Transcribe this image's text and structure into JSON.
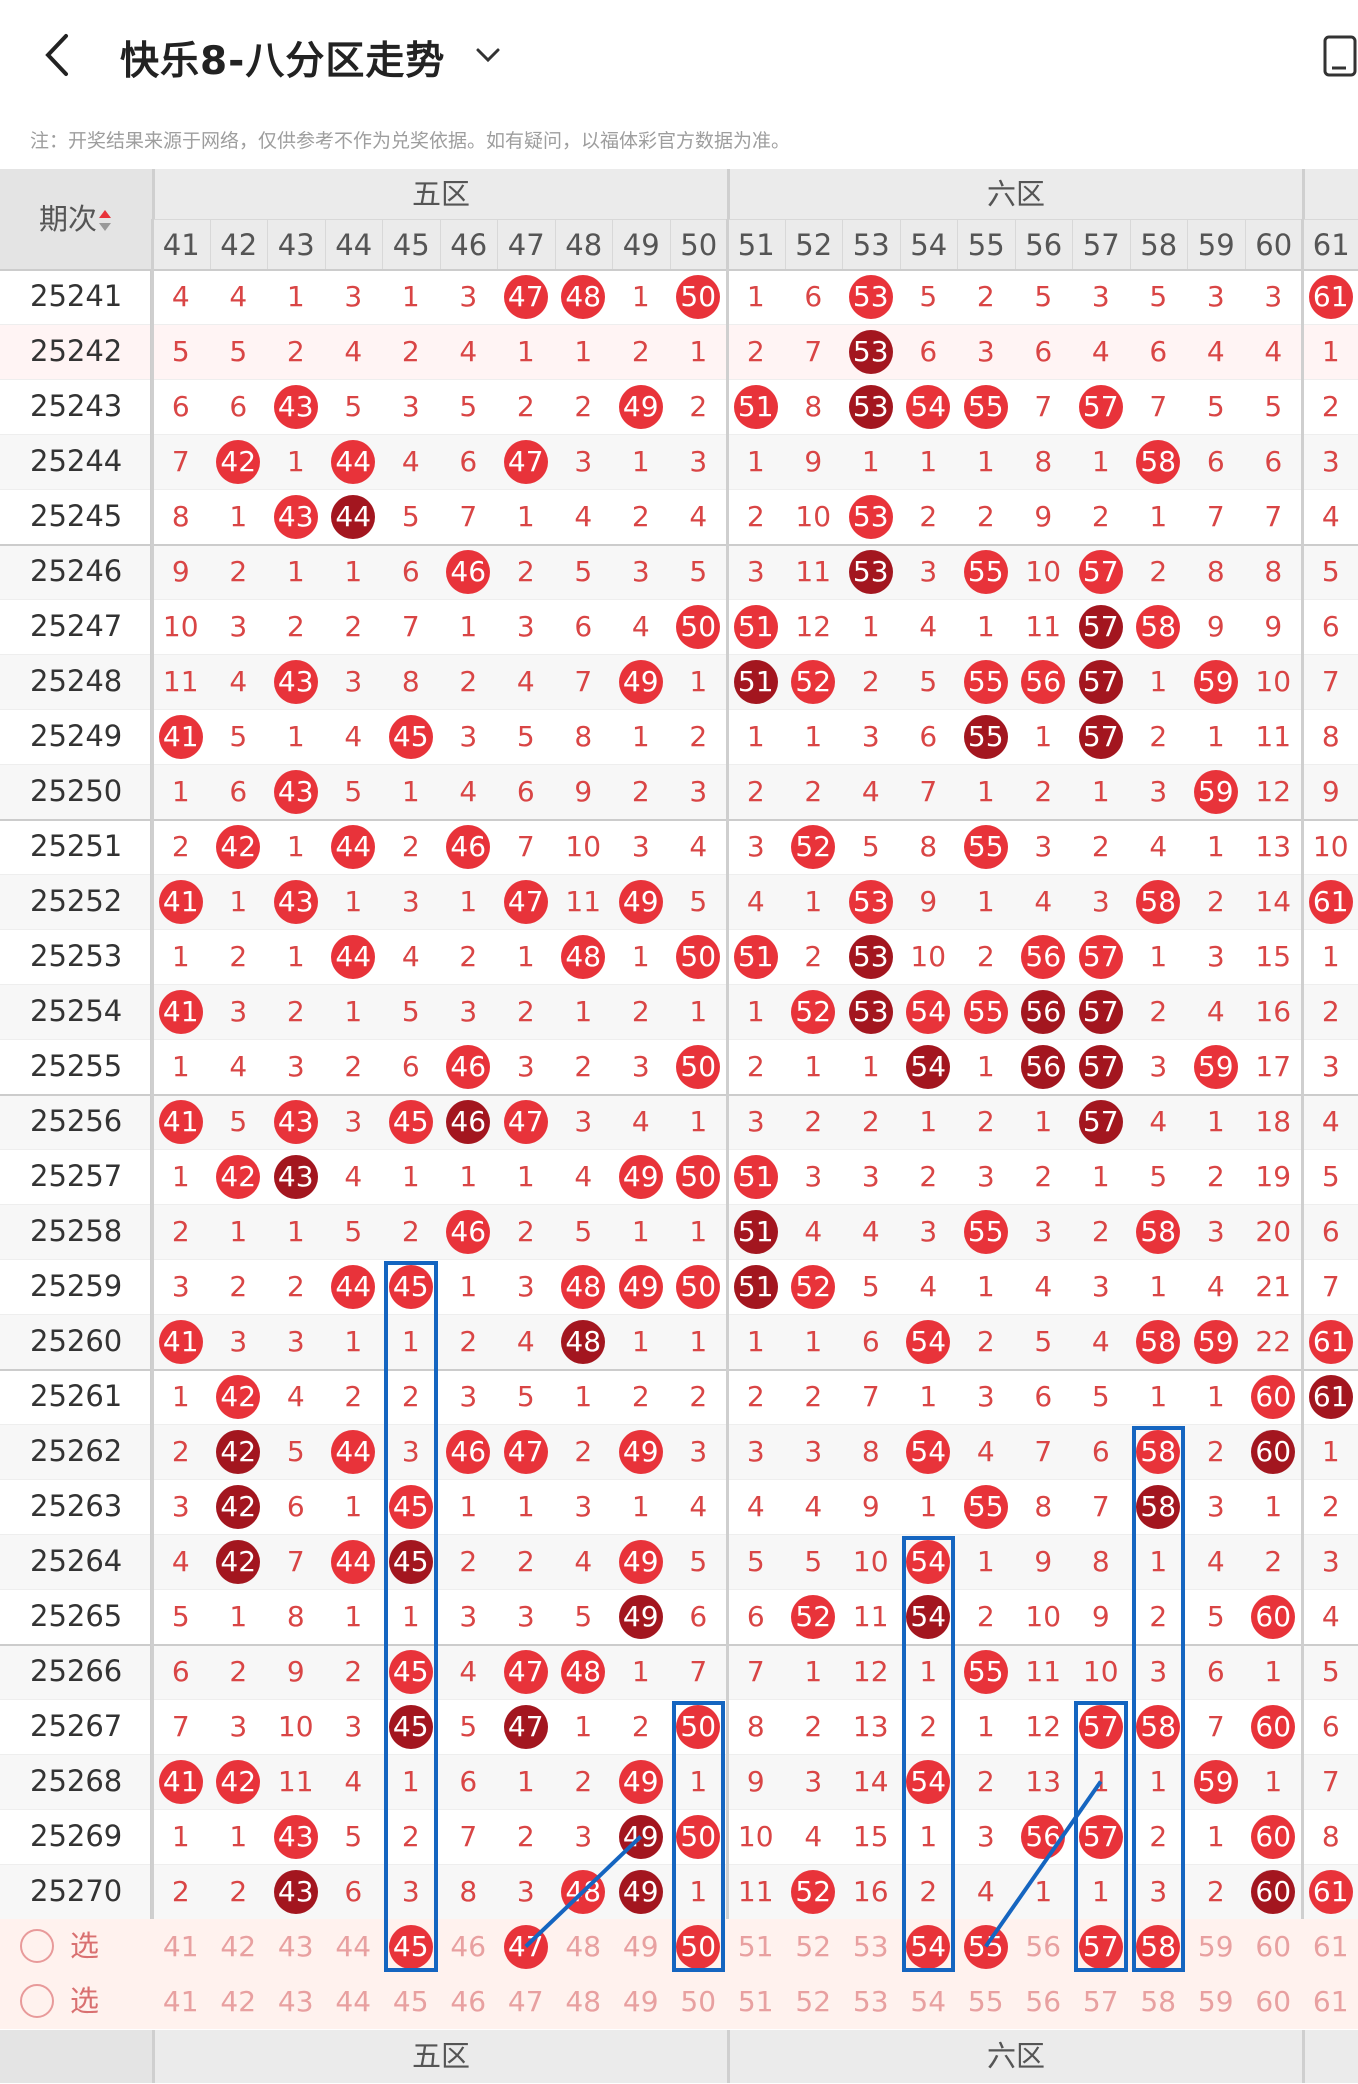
{
  "header": {
    "title": "快乐8-八分区走势",
    "back_icon": "chevron-left-icon",
    "dropdown_icon": "chevron-down-icon",
    "device_icon": "phone-icon"
  },
  "notice": "注：开奖结果来源于网络，仅供参考不作为兑奖依据。如有疑问，以福体彩官方数据为准。",
  "table": {
    "period_header": "期次",
    "zones": [
      {
        "label": "五区",
        "first": 41,
        "last": 50
      },
      {
        "label": "六区",
        "first": 51,
        "last": 60
      },
      {
        "label": "",
        "first": 61,
        "last": 61
      }
    ],
    "columns": [
      "41",
      "42",
      "43",
      "44",
      "45",
      "46",
      "47",
      "48",
      "49",
      "50",
      "51",
      "52",
      "53",
      "54",
      "55",
      "56",
      "57",
      "58",
      "59",
      "60",
      "61"
    ],
    "rows": [
      {
        "period": "25241",
        "cells": [
          "4",
          "4",
          "1",
          "3",
          "1",
          "3",
          "47",
          "48",
          "1",
          "50",
          "1",
          "6",
          "53",
          "5",
          "2",
          "5",
          "3",
          "5",
          "3",
          "3",
          "61"
        ]
      },
      {
        "period": "25242",
        "cells": [
          "5",
          "5",
          "2",
          "4",
          "2",
          "4",
          "1",
          "1",
          "2",
          "1",
          "2",
          "7",
          "53",
          "6",
          "3",
          "6",
          "4",
          "6",
          "4",
          "4",
          "1"
        ]
      },
      {
        "period": "25243",
        "cells": [
          "6",
          "6",
          "43",
          "5",
          "3",
          "5",
          "2",
          "2",
          "49",
          "2",
          "51",
          "8",
          "53",
          "54",
          "55",
          "7",
          "57",
          "7",
          "5",
          "5",
          "2"
        ]
      },
      {
        "period": "25244",
        "cells": [
          "7",
          "42",
          "1",
          "44",
          "4",
          "6",
          "47",
          "3",
          "1",
          "3",
          "1",
          "9",
          "1",
          "1",
          "1",
          "8",
          "1",
          "58",
          "6",
          "6",
          "3"
        ]
      },
      {
        "period": "25245",
        "cells": [
          "8",
          "1",
          "43",
          "44",
          "5",
          "7",
          "1",
          "4",
          "2",
          "4",
          "2",
          "10",
          "53",
          "2",
          "2",
          "9",
          "2",
          "1",
          "7",
          "7",
          "4"
        ]
      },
      {
        "period": "25246",
        "cells": [
          "9",
          "2",
          "1",
          "1",
          "6",
          "46",
          "2",
          "5",
          "3",
          "5",
          "3",
          "11",
          "53",
          "3",
          "55",
          "10",
          "57",
          "2",
          "8",
          "8",
          "5"
        ]
      },
      {
        "period": "25247",
        "cells": [
          "10",
          "3",
          "2",
          "2",
          "7",
          "1",
          "3",
          "6",
          "4",
          "50",
          "51",
          "12",
          "1",
          "4",
          "1",
          "11",
          "57",
          "58",
          "9",
          "9",
          "6"
        ]
      },
      {
        "period": "25248",
        "cells": [
          "11",
          "4",
          "43",
          "3",
          "8",
          "2",
          "4",
          "7",
          "49",
          "1",
          "51",
          "52",
          "2",
          "5",
          "55",
          "56",
          "57",
          "1",
          "59",
          "10",
          "7"
        ]
      },
      {
        "period": "25249",
        "cells": [
          "41",
          "5",
          "1",
          "4",
          "45",
          "3",
          "5",
          "8",
          "1",
          "2",
          "1",
          "1",
          "3",
          "6",
          "55",
          "1",
          "57",
          "2",
          "1",
          "11",
          "8"
        ]
      },
      {
        "period": "25250",
        "cells": [
          "1",
          "6",
          "43",
          "5",
          "1",
          "4",
          "6",
          "9",
          "2",
          "3",
          "2",
          "2",
          "4",
          "7",
          "1",
          "2",
          "1",
          "3",
          "59",
          "12",
          "9"
        ]
      },
      {
        "period": "25251",
        "cells": [
          "2",
          "42",
          "1",
          "44",
          "2",
          "46",
          "7",
          "10",
          "3",
          "4",
          "3",
          "52",
          "5",
          "8",
          "55",
          "3",
          "2",
          "4",
          "1",
          "13",
          "10"
        ]
      },
      {
        "period": "25252",
        "cells": [
          "41",
          "1",
          "43",
          "1",
          "3",
          "1",
          "47",
          "11",
          "49",
          "5",
          "4",
          "1",
          "53",
          "9",
          "1",
          "4",
          "3",
          "58",
          "2",
          "14",
          "61"
        ]
      },
      {
        "period": "25253",
        "cells": [
          "1",
          "2",
          "1",
          "44",
          "4",
          "2",
          "1",
          "48",
          "1",
          "50",
          "51",
          "2",
          "53",
          "10",
          "2",
          "56",
          "57",
          "1",
          "3",
          "15",
          "1"
        ]
      },
      {
        "period": "25254",
        "cells": [
          "41",
          "3",
          "2",
          "1",
          "5",
          "3",
          "2",
          "1",
          "2",
          "1",
          "1",
          "52",
          "53",
          "54",
          "55",
          "56",
          "57",
          "2",
          "4",
          "16",
          "2"
        ]
      },
      {
        "period": "25255",
        "cells": [
          "1",
          "4",
          "3",
          "2",
          "6",
          "46",
          "3",
          "2",
          "3",
          "50",
          "2",
          "1",
          "1",
          "54",
          "1",
          "56",
          "57",
          "3",
          "59",
          "17",
          "3"
        ]
      },
      {
        "period": "25256",
        "cells": [
          "41",
          "5",
          "43",
          "3",
          "45",
          "46",
          "47",
          "3",
          "4",
          "1",
          "3",
          "2",
          "2",
          "1",
          "2",
          "1",
          "57",
          "4",
          "1",
          "18",
          "4"
        ]
      },
      {
        "period": "25257",
        "cells": [
          "1",
          "42",
          "43",
          "4",
          "1",
          "1",
          "1",
          "4",
          "49",
          "50",
          "51",
          "3",
          "3",
          "2",
          "3",
          "2",
          "1",
          "5",
          "2",
          "19",
          "5"
        ]
      },
      {
        "period": "25258",
        "cells": [
          "2",
          "1",
          "1",
          "5",
          "2",
          "46",
          "2",
          "5",
          "1",
          "1",
          "51",
          "4",
          "4",
          "3",
          "55",
          "3",
          "2",
          "58",
          "3",
          "20",
          "6"
        ]
      },
      {
        "period": "25259",
        "cells": [
          "3",
          "2",
          "2",
          "44",
          "45",
          "1",
          "3",
          "48",
          "49",
          "50",
          "51",
          "52",
          "5",
          "4",
          "1",
          "4",
          "3",
          "1",
          "4",
          "21",
          "7"
        ]
      },
      {
        "period": "25260",
        "cells": [
          "41",
          "3",
          "3",
          "1",
          "1",
          "2",
          "4",
          "48",
          "1",
          "1",
          "1",
          "1",
          "6",
          "54",
          "2",
          "5",
          "4",
          "58",
          "59",
          "22",
          "61"
        ]
      },
      {
        "period": "25261",
        "cells": [
          "1",
          "42",
          "4",
          "2",
          "2",
          "3",
          "5",
          "1",
          "2",
          "2",
          "2",
          "2",
          "7",
          "1",
          "3",
          "6",
          "5",
          "1",
          "1",
          "60",
          "61"
        ]
      },
      {
        "period": "25262",
        "cells": [
          "2",
          "42",
          "5",
          "44",
          "3",
          "46",
          "47",
          "2",
          "49",
          "3",
          "3",
          "3",
          "8",
          "54",
          "4",
          "7",
          "6",
          "58",
          "2",
          "60",
          "1"
        ]
      },
      {
        "period": "25263",
        "cells": [
          "3",
          "42",
          "6",
          "1",
          "45",
          "1",
          "1",
          "3",
          "1",
          "4",
          "4",
          "4",
          "9",
          "1",
          "55",
          "8",
          "7",
          "58",
          "3",
          "1",
          "2"
        ]
      },
      {
        "period": "25264",
        "cells": [
          "4",
          "42",
          "7",
          "44",
          "45",
          "2",
          "2",
          "4",
          "49",
          "5",
          "5",
          "5",
          "10",
          "54",
          "1",
          "9",
          "8",
          "1",
          "4",
          "2",
          "3"
        ]
      },
      {
        "period": "25265",
        "cells": [
          "5",
          "1",
          "8",
          "1",
          "1",
          "3",
          "3",
          "5",
          "49",
          "6",
          "6",
          "52",
          "11",
          "54",
          "2",
          "10",
          "9",
          "2",
          "5",
          "60",
          "4"
        ]
      },
      {
        "period": "25266",
        "cells": [
          "6",
          "2",
          "9",
          "2",
          "45",
          "4",
          "47",
          "48",
          "1",
          "7",
          "7",
          "1",
          "12",
          "1",
          "55",
          "11",
          "10",
          "3",
          "6",
          "1",
          "5"
        ]
      },
      {
        "period": "25267",
        "cells": [
          "7",
          "3",
          "10",
          "3",
          "45",
          "5",
          "47",
          "1",
          "2",
          "50",
          "8",
          "2",
          "13",
          "2",
          "1",
          "12",
          "57",
          "58",
          "7",
          "60",
          "6"
        ]
      },
      {
        "period": "25268",
        "cells": [
          "41",
          "42",
          "11",
          "4",
          "1",
          "6",
          "1",
          "2",
          "49",
          "1",
          "9",
          "3",
          "14",
          "54",
          "2",
          "13",
          "1",
          "1",
          "59",
          "1",
          "7"
        ]
      },
      {
        "period": "25269",
        "cells": [
          "1",
          "1",
          "43",
          "5",
          "2",
          "7",
          "2",
          "3",
          "49",
          "50",
          "10",
          "4",
          "15",
          "1",
          "3",
          "56",
          "57",
          "2",
          "1",
          "60",
          "8"
        ]
      },
      {
        "period": "25270",
        "cells": [
          "2",
          "2",
          "43",
          "6",
          "3",
          "8",
          "3",
          "48",
          "49",
          "1",
          "11",
          "52",
          "16",
          "2",
          "4",
          "1",
          "1",
          "3",
          "2",
          "60",
          "61"
        ]
      }
    ],
    "select_label": "选号",
    "select_rows": 2,
    "selected_numbers": [
      45,
      47,
      50,
      54,
      55,
      57,
      58
    ]
  },
  "colors": {
    "hot": "#e8333a",
    "repeat": "#a3161f",
    "box": "#1565c0",
    "header_bg": "#ebebeb"
  }
}
